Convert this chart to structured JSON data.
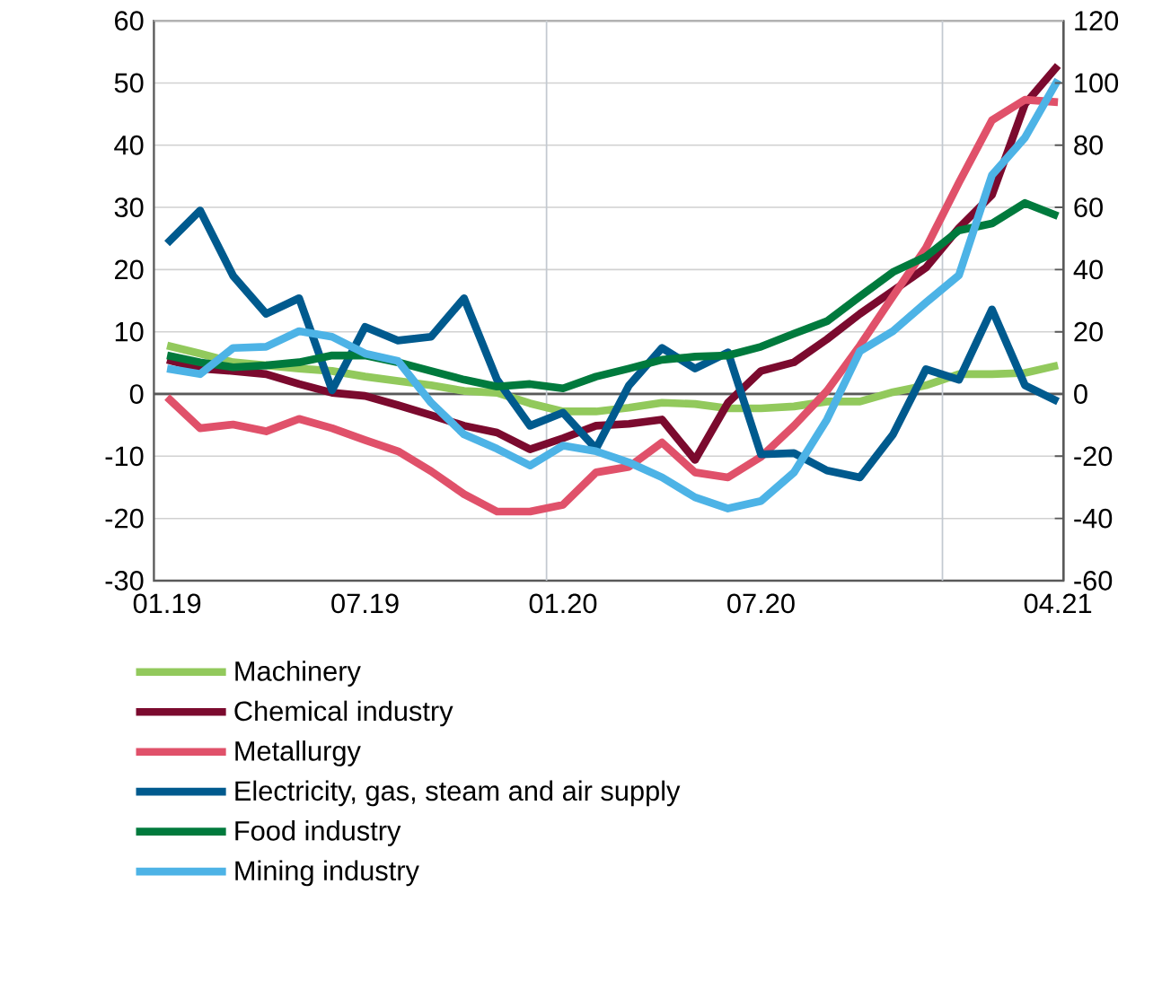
{
  "chart_data": {
    "type": "line",
    "x": [
      "2019-01",
      "2019-02",
      "2019-03",
      "2019-04",
      "2019-05",
      "2019-06",
      "2019-07",
      "2019-08",
      "2019-09",
      "2019-10",
      "2019-11",
      "2019-12",
      "2020-01",
      "2020-02",
      "2020-03",
      "2020-04",
      "2020-05",
      "2020-06",
      "2020-07",
      "2020-08",
      "2020-09",
      "2020-10",
      "2020-11",
      "2020-12",
      "2021-01",
      "2021-02",
      "2021-03",
      "2021-04"
    ],
    "series": [
      {
        "name": "Machinery",
        "color": "#92c95c",
        "values": [
          7.8,
          6.5,
          5.1,
          4.6,
          4.1,
          3.7,
          2.8,
          2.1,
          1.4,
          0.5,
          0.2,
          -1.5,
          -2.8,
          -2.8,
          -2.2,
          -1.4,
          -1.6,
          -2.3,
          -2.3,
          -2.0,
          -1.2,
          -1.2,
          0.3,
          1.4,
          3.2,
          3.2,
          3.4,
          4.6
        ]
      },
      {
        "name": "Chemical industry",
        "color": "#7b0a2e",
        "values": [
          5.5,
          4.1,
          3.7,
          3.2,
          1.6,
          0.2,
          -0.3,
          -1.8,
          -3.4,
          -5.1,
          -6.2,
          -8.9,
          -7.1,
          -5.1,
          -4.8,
          -4.1,
          -10.6,
          -1.4,
          3.7,
          5.1,
          8.8,
          12.9,
          16.6,
          20.3,
          26.7,
          32,
          46.6,
          52.8
        ]
      },
      {
        "name": "Metallurgy",
        "color": "#e0516a",
        "values": [
          -0.5,
          -5.5,
          -4.9,
          -6.0,
          -4.0,
          -5.5,
          -7.4,
          -9.2,
          -12.4,
          -16.1,
          -18.9,
          -18.9,
          -17.8,
          -12.6,
          -11.7,
          -7.8,
          -12.6,
          -13.4,
          -10.1,
          -5.1,
          0.5,
          7.8,
          15.7,
          23.5,
          34,
          44,
          47.3,
          46.9
        ]
      },
      {
        "name": "Electricity, gas, steam and air supply",
        "color": "#005a8e",
        "values": [
          24.2,
          29.5,
          19,
          12.9,
          15.4,
          0.6,
          10.8,
          8.6,
          9.2,
          15.4,
          2.3,
          -5.1,
          -3,
          -8.8,
          1.4,
          7.4,
          4.1,
          6.7,
          -9.7,
          -9.5,
          -12.3,
          -13.4,
          -6.5,
          4,
          2.3,
          13.6,
          1.4,
          -1.2
        ]
      },
      {
        "name": "Food industry",
        "color": "#007a3d",
        "values": [
          6.2,
          5.1,
          4.3,
          4.6,
          5.1,
          6.2,
          6.2,
          5.1,
          3.7,
          2.3,
          1.2,
          1.6,
          0.9,
          2.8,
          4.1,
          5.5,
          6.0,
          6.2,
          7.6,
          9.7,
          11.7,
          15.7,
          19.6,
          22.1,
          26.3,
          27.4,
          30.7,
          28.6
        ]
      },
      {
        "name": "Mining industry",
        "color": "#4db3e6",
        "values": [
          4.1,
          3.2,
          7.4,
          7.6,
          10.1,
          9.2,
          6.5,
          5.3,
          -1.4,
          -6.5,
          -8.8,
          -11.5,
          -8.3,
          -9.2,
          -11,
          -13.4,
          -16.6,
          -18.4,
          -17.2,
          -12.6,
          -4.1,
          6.9,
          10.1,
          14.7,
          19.1,
          35.2,
          41.2,
          50.5
        ]
      }
    ],
    "xlim": [
      "2018-12-19",
      "2021-04-06"
    ],
    "xticks": [
      {
        "value": "2019-01",
        "label": "01.19"
      },
      {
        "value": "2019-07",
        "label": "07.19"
      },
      {
        "value": "2020-01",
        "label": "01.20"
      },
      {
        "value": "2020-07",
        "label": "07.20"
      },
      {
        "value": "2021-04",
        "label": "04.21"
      }
    ],
    "ylim": [
      -30,
      60
    ],
    "yticks": [
      -30,
      -20,
      -10,
      0,
      10,
      20,
      30,
      40,
      50,
      60
    ],
    "y2lim": [
      -60,
      120
    ],
    "y2ticks": [
      -60,
      -40,
      -20,
      0,
      20,
      40,
      60,
      80,
      100,
      120
    ],
    "ref_lines": [
      {
        "axis": "y",
        "value": 0,
        "color": "#595959"
      },
      {
        "axis": "x",
        "value": "2019-12-16",
        "color": "#c3c9d0"
      },
      {
        "axis": "x",
        "value": "2020-12-16",
        "color": "#c3c9d0"
      }
    ],
    "grid": "y",
    "legend": "bottom",
    "marker": "none",
    "line_style": "solid"
  }
}
